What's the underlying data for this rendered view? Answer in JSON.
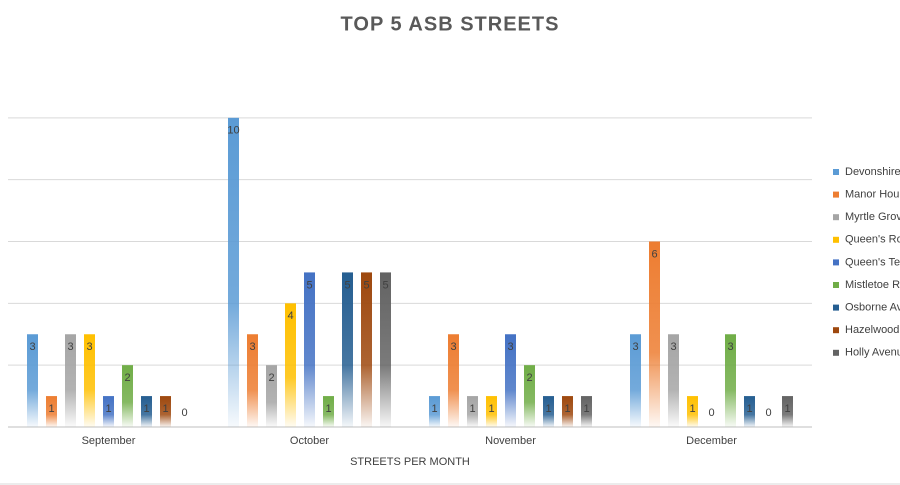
{
  "chart_data": {
    "type": "bar",
    "title": "TOP 5 ASB STREETS",
    "x_label": "STREETS PER MONTH",
    "categories": [
      "September",
      "October",
      "November",
      "December"
    ],
    "series": [
      {
        "name": "Devonshire",
        "color": "#5b9bd5",
        "values": [
          3,
          10,
          1,
          3
        ]
      },
      {
        "name": "Manor Hou",
        "color": "#ed7d31",
        "values": [
          1,
          3,
          3,
          6
        ]
      },
      {
        "name": "Myrtle Grov",
        "color": "#a5a5a5",
        "values": [
          3,
          2,
          1,
          3
        ]
      },
      {
        "name": "Queen's Ro",
        "color": "#ffc000",
        "values": [
          3,
          4,
          1,
          1
        ]
      },
      {
        "name": "Queen's Te",
        "color": "#4472c4",
        "values": [
          1,
          5,
          3,
          0
        ]
      },
      {
        "name": "Mistletoe R",
        "color": "#70ad47",
        "values": [
          2,
          1,
          2,
          3
        ]
      },
      {
        "name": "Osborne Av",
        "color": "#255e91",
        "values": [
          1,
          5,
          1,
          1
        ]
      },
      {
        "name": "Hazelwood",
        "color": "#9e480e",
        "values": [
          1,
          5,
          1,
          0
        ]
      },
      {
        "name": "Holly Avenu",
        "color": "#636363",
        "values": [
          0,
          5,
          1,
          1
        ]
      }
    ],
    "ylim": [
      0,
      12
    ],
    "yticks": [
      0,
      2,
      4,
      6,
      8,
      10
    ],
    "grid": true,
    "legend": "right"
  }
}
